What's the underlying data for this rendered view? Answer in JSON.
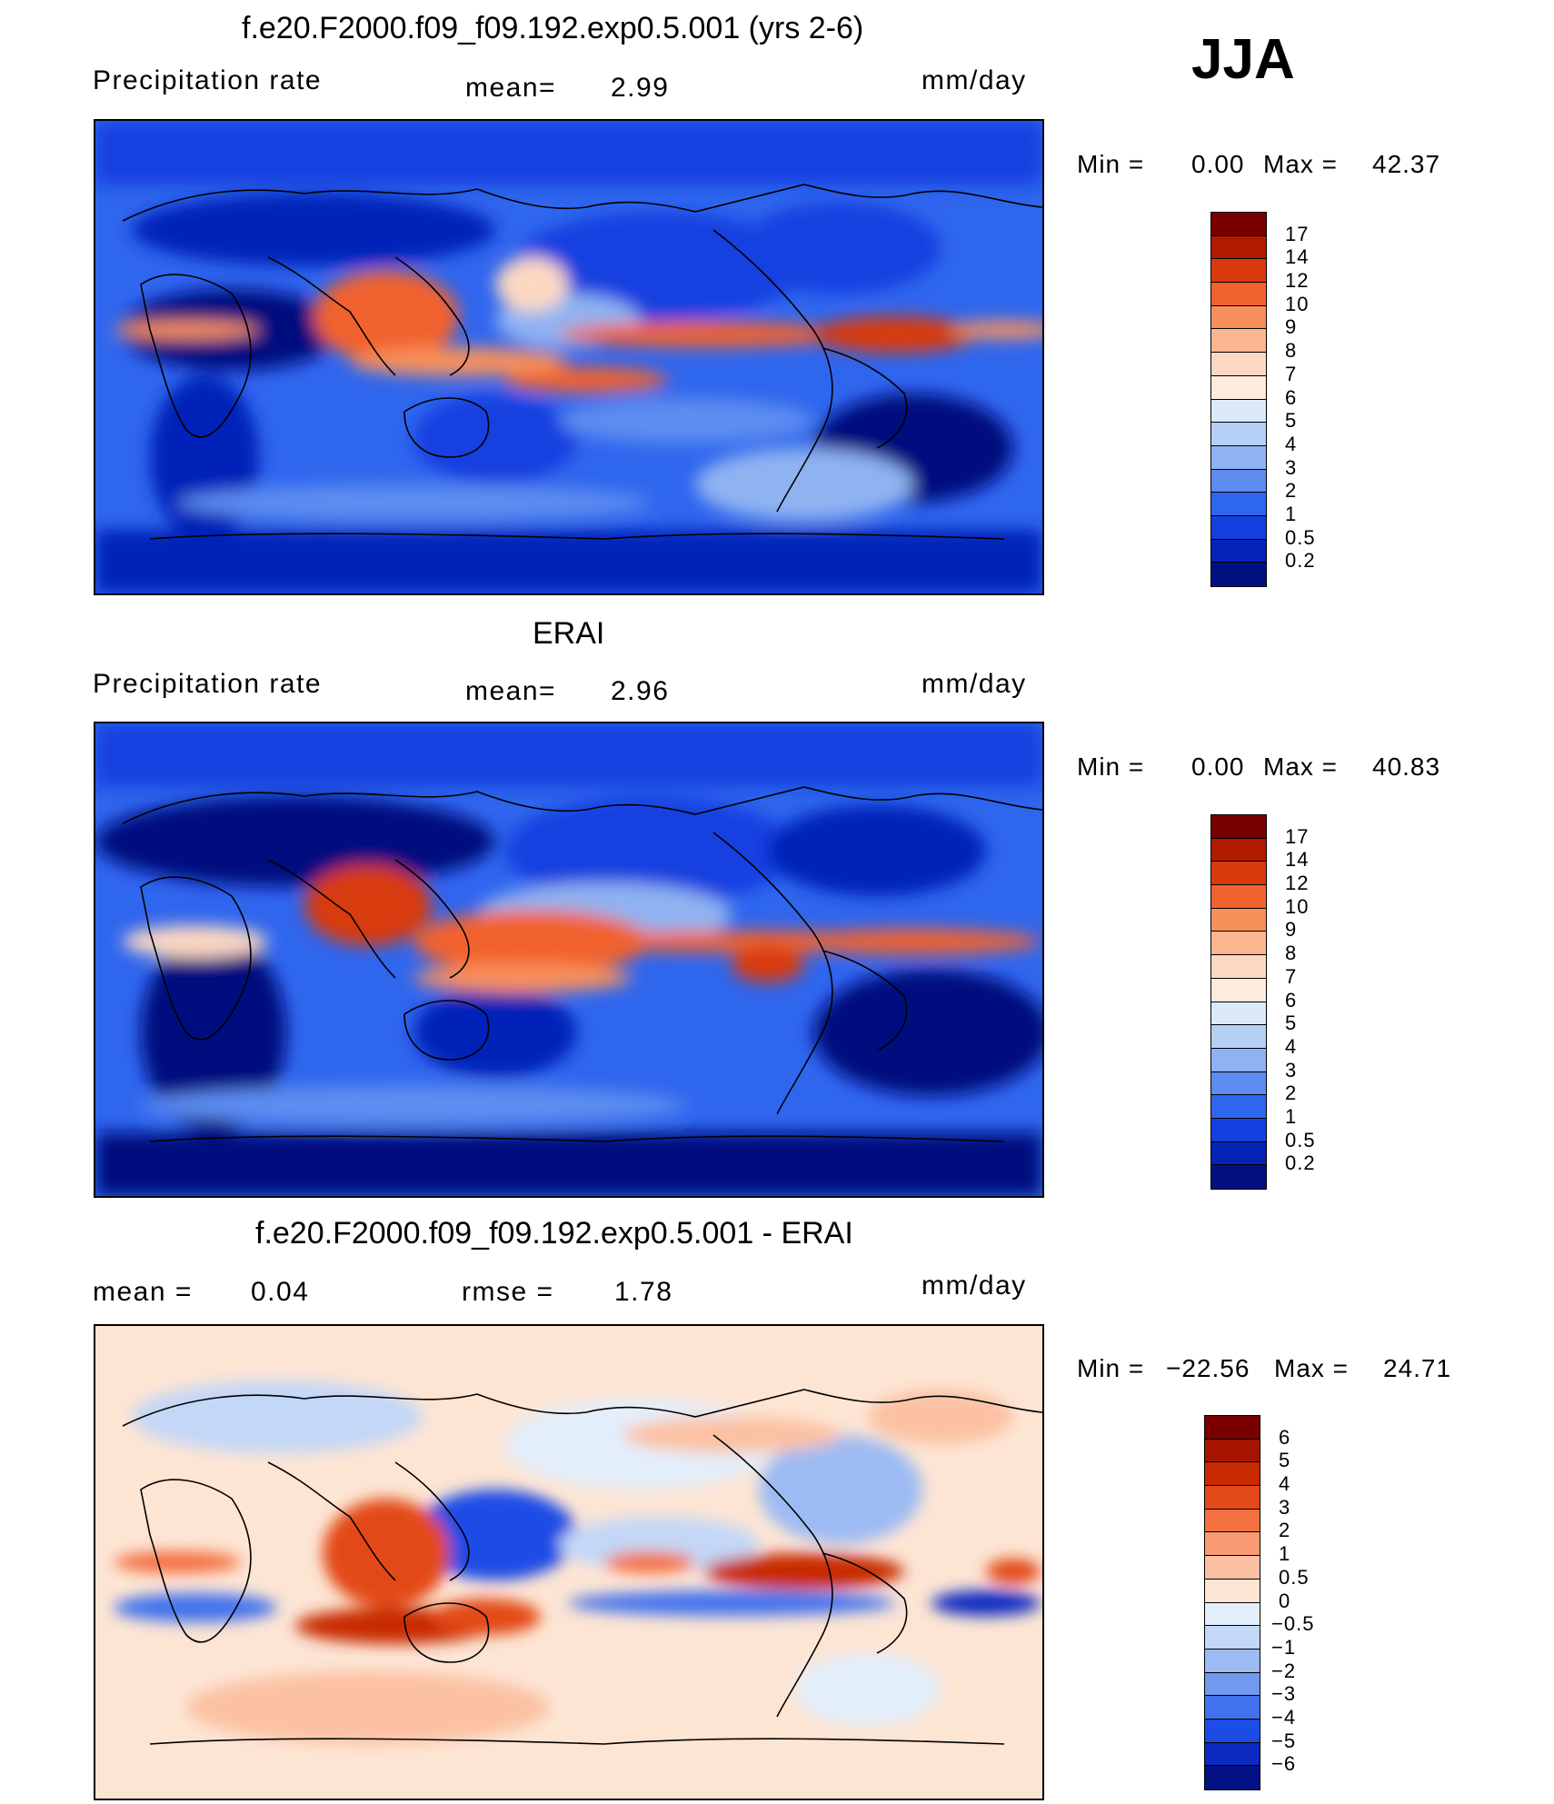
{
  "season": "JJA",
  "panels": [
    {
      "title": "f.e20.F2000.f09_f09.192.exp0.5.001 (yrs 2-6)",
      "left_label": "Precipitation  rate",
      "mid_key": "mean=",
      "mid_value": "2.99",
      "units": "mm/day",
      "min_label": "Min  =",
      "min_value": "0.00",
      "max_label": "Max  =",
      "max_value": "42.37",
      "colorbar_labels": [
        "17",
        "14",
        "12",
        "10",
        "9",
        "8",
        "7",
        "6",
        "5",
        "4",
        "3",
        "2",
        "1",
        "0.5",
        "0.2"
      ],
      "colorbar_colors": [
        "#7a0000",
        "#b21a00",
        "#d83a0c",
        "#f2622e",
        "#f8905c",
        "#fbb58f",
        "#fcd8c2",
        "#fdebdc",
        "#dce9f8",
        "#b6cff5",
        "#8fb2f1",
        "#5d8df0",
        "#2f66ee",
        "#1440e0",
        "#0623b8",
        "#02107f"
      ]
    },
    {
      "title": "ERAI",
      "left_label": "Precipitation  rate",
      "mid_key": "mean=",
      "mid_value": "2.96",
      "units": "mm/day",
      "min_label": "Min  =",
      "min_value": "0.00",
      "max_label": "Max  =",
      "max_value": "40.83",
      "colorbar_labels": [
        "17",
        "14",
        "12",
        "10",
        "9",
        "8",
        "7",
        "6",
        "5",
        "4",
        "3",
        "2",
        "1",
        "0.5",
        "0.2"
      ],
      "colorbar_colors": [
        "#7a0000",
        "#b21a00",
        "#d83a0c",
        "#f2622e",
        "#f8905c",
        "#fbb58f",
        "#fcd8c2",
        "#fdebdc",
        "#dce9f8",
        "#b6cff5",
        "#8fb2f1",
        "#5d8df0",
        "#2f66ee",
        "#1440e0",
        "#0623b8",
        "#02107f"
      ]
    },
    {
      "title": "f.e20.F2000.f09_f09.192.exp0.5.001 - ERAI",
      "left_label": "mean  =",
      "left_value": "0.04",
      "mid_key": "rmse  =",
      "mid_value": "1.78",
      "units": "mm/day",
      "min_label": "Min  =",
      "min_value": "−22.56",
      "max_label": "Max  =",
      "max_value": "24.71",
      "colorbar_labels": [
        "6",
        "5",
        "4",
        "3",
        "2",
        "1",
        "0.5",
        "0",
        "−0.5",
        "−1",
        "−2",
        "−3",
        "−4",
        "−5",
        "−6"
      ],
      "colorbar_colors": [
        "#7a0000",
        "#a41400",
        "#c82a04",
        "#e34a18",
        "#f37040",
        "#f99a72",
        "#fcc1a3",
        "#fde5d4",
        "#e3eefb",
        "#c3d7f7",
        "#9dbbf3",
        "#7099f0",
        "#4272ee",
        "#1c4ce6",
        "#0a2ac2",
        "#021285"
      ]
    }
  ]
}
